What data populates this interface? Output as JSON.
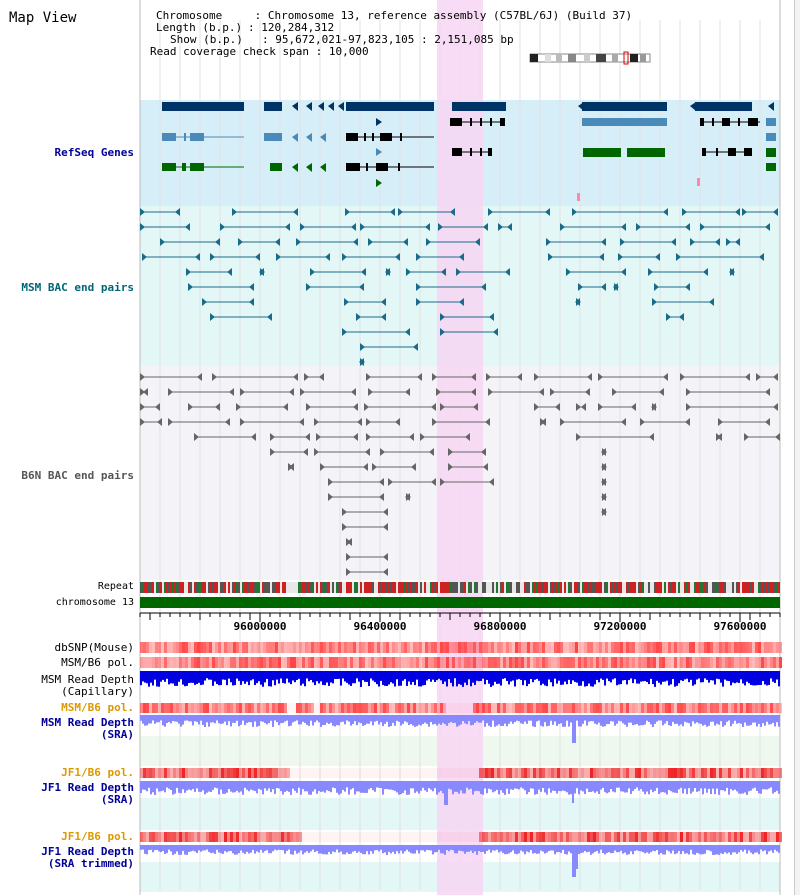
{
  "header": {
    "title": "Map View",
    "chromosome_label": "Chromosome",
    "chromosome_value": "Chromosome 13, reference assembly (C57BL/6J) (Build 37)",
    "length_label": "Length (b.p.)",
    "length_value": "120,284,312",
    "show_label": "Show (b.p.)",
    "show_value": "95,672,021-97,823,105 : 2,151,085 bp",
    "coverage_label": "Read coverage check span",
    "coverage_value": "10,000"
  },
  "tracks": {
    "refseq": "RefSeq Genes",
    "msm_bac": "MSM BAC end pairs",
    "b6n_bac": "B6N BAC end pairs",
    "repeat": "Repeat",
    "chromosome": "chromosome 13",
    "dbsnp": "dbSNP(Mouse)",
    "msm_b6_pol_1": "MSM/B6 pol.",
    "msm_depth_cap_1": "MSM Read Depth",
    "msm_depth_cap_2": "(Capillary)",
    "msm_b6_pol_2": "MSM/B6 pol.",
    "msm_depth_sra_1": "MSM Read Depth",
    "msm_depth_sra_2": "(SRA)",
    "jf1_pol_1": "JF1/B6 pol.",
    "jf1_depth_sra_1": "JF1 Read Depth",
    "jf1_depth_sra_2": "(SRA)",
    "jf1_pol_2": "JF1/B6 pol.",
    "jf1_depth_trim_1": "JF1 Read Depth",
    "jf1_depth_trim_2": "(SRA trimmed)"
  },
  "axis": {
    "ticks": [
      "96000000",
      "96400000",
      "96800000",
      "97200000",
      "97600000"
    ]
  },
  "colors": {
    "highlight": "#f7d6f3",
    "gene_dark": "#003366",
    "gene_mid": "#4a8ab8",
    "gene_green": "#006600",
    "msm_bac": "#1a6b8a",
    "b6n_bac": "#666666",
    "dbsnp": "#ff6666",
    "depth_dark": "#0000e0",
    "depth_light": "#8888ff",
    "pol_orange": "#cc8800",
    "label_blue": "#000099",
    "label_teal": "#006677"
  }
}
